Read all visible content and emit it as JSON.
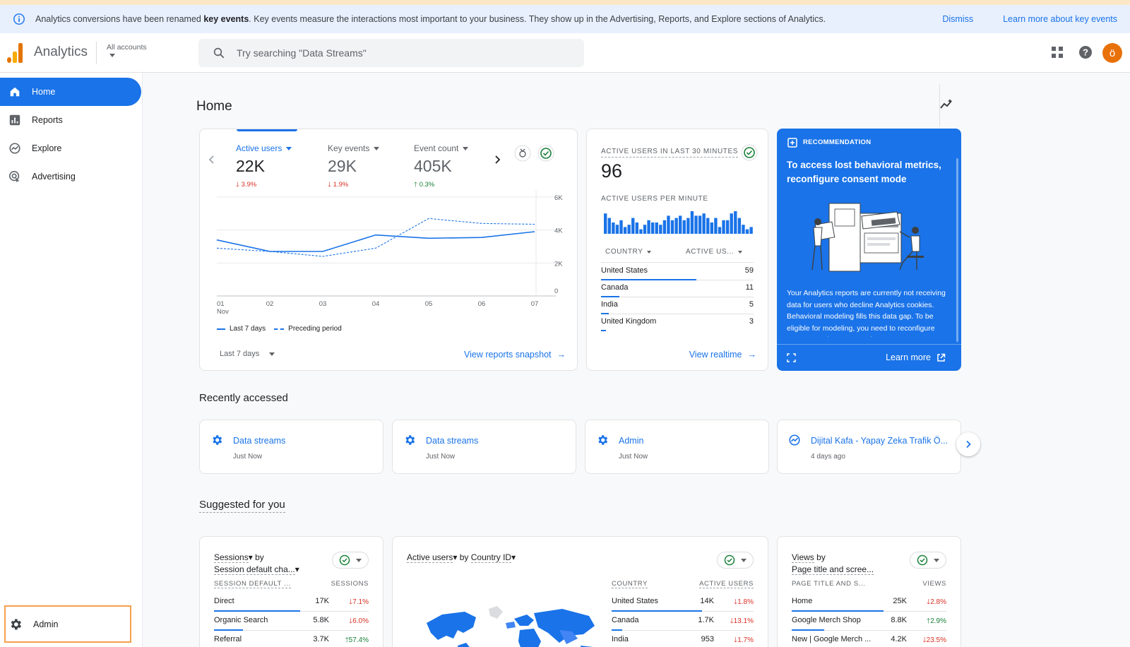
{
  "banner": {
    "message_pre": "Analytics conversions have been renamed ",
    "message_bold": "key events",
    "message_post": ". Key events measure the interactions most important to your business. They show up in the Advertising, Reports, and Explore sections of Analytics.",
    "dismiss": "Dismiss",
    "learn_more": "Learn more about key events"
  },
  "header": {
    "app_title": "Analytics",
    "account_label": "All accounts",
    "search_placeholder": "Try searching \"Data Streams\"",
    "avatar_letter": "ö"
  },
  "sidebar": {
    "items": [
      {
        "label": "Home",
        "icon": "home-icon"
      },
      {
        "label": "Reports",
        "icon": "bar-chart-icon"
      },
      {
        "label": "Explore",
        "icon": "explore-icon"
      },
      {
        "label": "Advertising",
        "icon": "advertising-icon"
      }
    ],
    "admin": "Admin"
  },
  "page": {
    "title": "Home"
  },
  "overview": {
    "metrics": [
      {
        "label": "Active users",
        "value": "22K",
        "change": "3.9%",
        "dir": "down"
      },
      {
        "label": "Key events",
        "value": "29K",
        "change": "1.9%",
        "dir": "down"
      },
      {
        "label": "Event count",
        "value": "405K",
        "change": "0.3%",
        "dir": "up"
      }
    ],
    "legend_current": "Last 7 days",
    "legend_previous": "Preceding period",
    "date_range": "Last 7 days",
    "view_link": "View reports snapshot"
  },
  "chart_data": {
    "type": "line",
    "x": [
      "01",
      "02",
      "03",
      "04",
      "05",
      "06",
      "07"
    ],
    "x_sub_first": "Nov",
    "y_ticks": [
      "6K",
      "4K",
      "2K",
      "0"
    ],
    "ylim": [
      0,
      6000
    ],
    "series": [
      {
        "name": "Last 7 days",
        "values": [
          3400,
          2700,
          2700,
          3700,
          3500,
          3550,
          3900
        ]
      },
      {
        "name": "Preceding period",
        "values": [
          2900,
          2700,
          2400,
          2900,
          4700,
          4400,
          4350
        ]
      }
    ]
  },
  "realtime": {
    "title": "ACTIVE USERS IN LAST 30 MINUTES",
    "value": "96",
    "per_minute_label": "ACTIVE USERS PER MINUTE",
    "bars": [
      9,
      7,
      5,
      4,
      6,
      3,
      4,
      7,
      5,
      2,
      4,
      6,
      5,
      5,
      4,
      6,
      8,
      6,
      7,
      8,
      6,
      7,
      10,
      8,
      8,
      9,
      7,
      5,
      7,
      3,
      6,
      6,
      9,
      10,
      7,
      4,
      2,
      3
    ],
    "col_country": "COUNTRY",
    "col_users": "ACTIVE US...",
    "rows": [
      {
        "country": "United States",
        "users": "59",
        "share": 1.0
      },
      {
        "country": "Canada",
        "users": "11",
        "share": 0.19
      },
      {
        "country": "India",
        "users": "5",
        "share": 0.085
      },
      {
        "country": "United Kingdom",
        "users": "3",
        "share": 0.05
      }
    ],
    "view_link": "View realtime"
  },
  "recommendation": {
    "tag": "RECOMMENDATION",
    "headline": "To access lost behavioral metrics, reconfigure consent mode",
    "body": "Your Analytics reports are currently not receiving data for users who decline Analytics cookies. Behavioral modeling fills this data gap. To be eligible for modeling, you need to reconfigure consent mode to ensure that",
    "learn_more": "Learn more"
  },
  "recently_accessed": {
    "title": "Recently accessed",
    "items": [
      {
        "title": "Data streams",
        "time": "Just Now",
        "icon": "gear-icon"
      },
      {
        "title": "Data streams",
        "time": "Just Now",
        "icon": "gear-icon"
      },
      {
        "title": "Admin",
        "time": "Just Now",
        "icon": "gear-icon"
      },
      {
        "title": "Dijital Kafa - Yapay Zeka Trafik Ö...",
        "time": "4 days ago",
        "icon": "analytics-icon"
      }
    ]
  },
  "suggested": {
    "title": "Suggested for you",
    "cards": [
      {
        "metric": "Sessions",
        "by": "by",
        "dimension": "Session default cha...",
        "col1": "SESSION DEFAULT ...",
        "col2": "SESSIONS",
        "rows": [
          {
            "name": "Direct",
            "value": "17K",
            "change": "7.1%",
            "dir": "down",
            "share": 1.0
          },
          {
            "name": "Organic Search",
            "value": "5.8K",
            "change": "6.0%",
            "dir": "down",
            "share": 0.34
          },
          {
            "name": "Referral",
            "value": "3.7K",
            "change": "57.4%",
            "dir": "up",
            "share": 0.22
          }
        ]
      },
      {
        "metric": "Active users",
        "by": "by",
        "dimension": "Country ID",
        "col1": "COUNTRY",
        "col2": "ACTIVE USERS",
        "rows": [
          {
            "name": "United States",
            "value": "14K",
            "change": "1.8%",
            "dir": "down",
            "share": 1.0
          },
          {
            "name": "Canada",
            "value": "1.7K",
            "change": "13.1%",
            "dir": "down",
            "share": 0.12
          },
          {
            "name": "India",
            "value": "953",
            "change": "1.7%",
            "dir": "down",
            "share": 0.07
          }
        ]
      },
      {
        "metric": "Views",
        "by": "by",
        "dimension": "Page title and scree...",
        "col1": "PAGE TITLE AND S...",
        "col2": "VIEWS",
        "rows": [
          {
            "name": "Home",
            "value": "25K",
            "change": "2.8%",
            "dir": "down",
            "share": 1.0
          },
          {
            "name": "Google Merch Shop",
            "value": "8.8K",
            "change": "2.9%",
            "dir": "up",
            "share": 0.35
          },
          {
            "name": "New | Google Merch ...",
            "value": "4.2K",
            "change": "23.5%",
            "dir": "down",
            "share": 0.17
          }
        ]
      }
    ]
  },
  "colors": {
    "accent": "#1a73e8",
    "up": "#188038",
    "down": "#d93025",
    "admin_highlight": "#f6a04d"
  }
}
